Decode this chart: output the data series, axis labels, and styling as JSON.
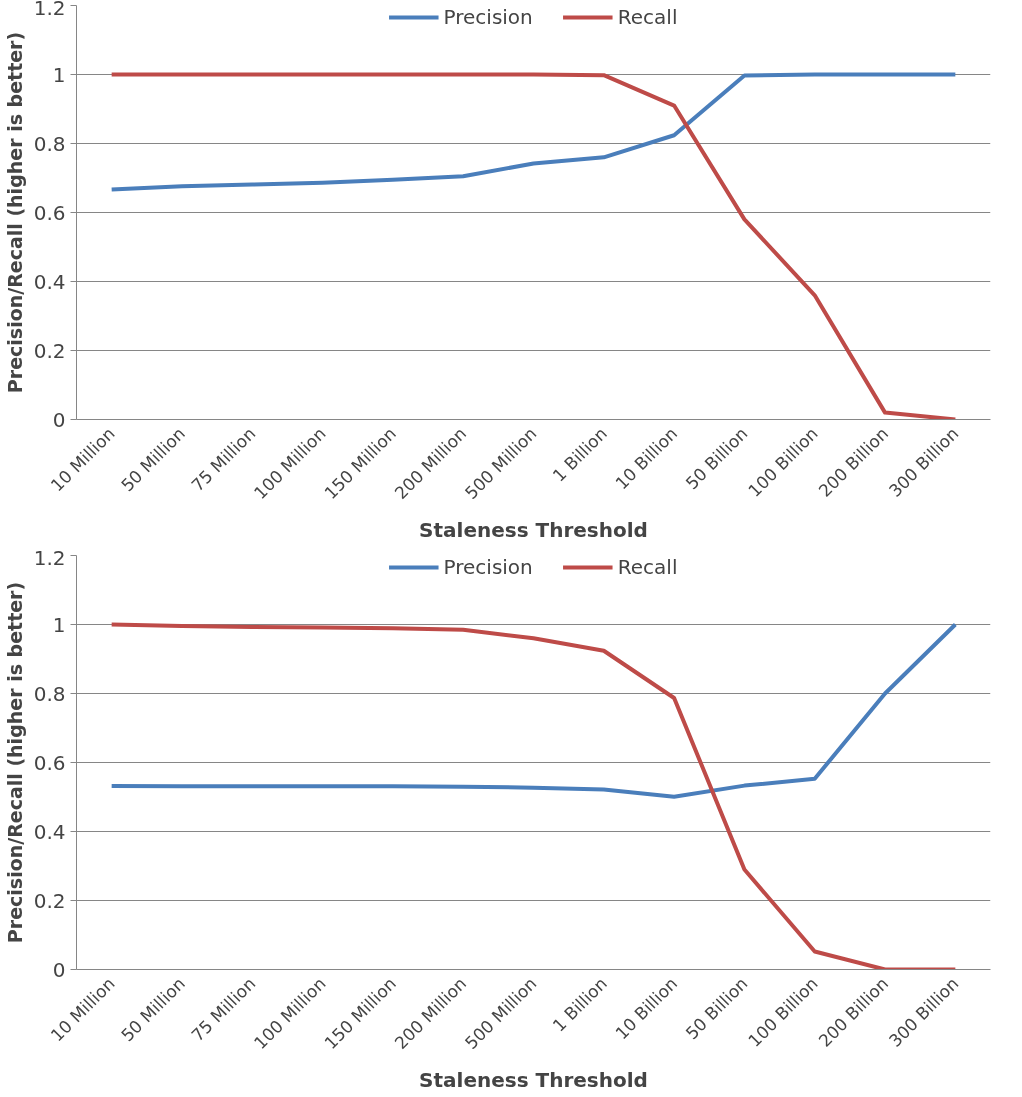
{
  "chart_data": [
    {
      "type": "line",
      "xlabel": "Staleness Threshold",
      "ylabel": "Precision/Recall (higher is better)",
      "categories": [
        "10 Million",
        "50 Million",
        "75 Million",
        "100 Million",
        "150 Million",
        "200 Million",
        "500 Million",
        "1 Billion",
        "10 Billion",
        "50 Billion",
        "100 Billion",
        "200 Billion",
        "300 Billion"
      ],
      "ylim": [
        0,
        1.2
      ],
      "yticks": [
        0,
        0.2,
        0.4,
        0.6,
        0.8,
        1,
        1.2
      ],
      "grid": "y",
      "legend": "top",
      "line_style": "solid",
      "marker": "none",
      "series": [
        {
          "name": "Precision",
          "color": "#4a7ebb",
          "values": [
            0.667,
            0.676,
            0.681,
            0.686,
            0.695,
            0.705,
            0.742,
            0.76,
            0.824,
            0.997,
            1.0,
            1.0,
            1.0
          ]
        },
        {
          "name": "Recall",
          "color": "#be4b48",
          "values": [
            1,
            1,
            1,
            1,
            1,
            1,
            1,
            0.998,
            0.91,
            0.58,
            0.36,
            0.02,
            0.0
          ]
        }
      ]
    },
    {
      "type": "line",
      "xlabel": "Staleness Threshold",
      "ylabel": "Precision/Recall (higher is better)",
      "categories": [
        "10 Million",
        "50 Million",
        "75 Million",
        "100 Million",
        "150 Million",
        "200 Million",
        "500 Million",
        "1 Billion",
        "10 Billion",
        "50 Billion",
        "100 Billion",
        "200 Billion",
        "300 Billion"
      ],
      "ylim": [
        0,
        1.2
      ],
      "yticks": [
        0,
        0.2,
        0.4,
        0.6,
        0.8,
        1,
        1.2
      ],
      "grid": "y",
      "legend": "top",
      "line_style": "solid",
      "marker": "none",
      "series": [
        {
          "name": "Precision",
          "color": "#4a7ebb",
          "values": [
            0.532,
            0.531,
            0.531,
            0.531,
            0.531,
            0.53,
            0.527,
            0.522,
            0.501,
            0.533,
            0.553,
            0.8,
            1.0
          ]
        },
        {
          "name": "Recall",
          "color": "#be4b48",
          "values": [
            1.0,
            0.996,
            0.993,
            0.991,
            0.989,
            0.985,
            0.96,
            0.924,
            0.787,
            0.29,
            0.052,
            0.0,
            0.0
          ]
        }
      ]
    }
  ]
}
